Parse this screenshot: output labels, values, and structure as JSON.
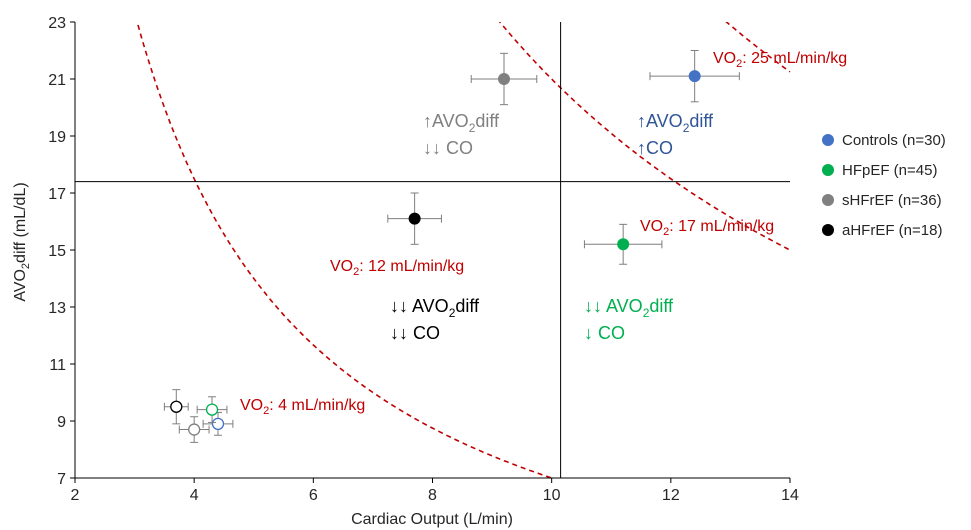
{
  "chart_data": {
    "type": "scatter",
    "xlabel": "Cardiac Output (L/min)",
    "ylabel_main": "AVO",
    "ylabel_sub": "2",
    "ylabel_tail": "diff (mL/dL)",
    "xlim": [
      2,
      14
    ],
    "ylim": [
      7,
      23
    ],
    "x_ticks": [
      2,
      4,
      6,
      8,
      10,
      12,
      14
    ],
    "y_ticks": [
      7,
      9,
      11,
      13,
      15,
      17,
      19,
      21,
      23
    ],
    "grid": false,
    "reference_lines": {
      "x": 10.15,
      "y": 17.4
    },
    "series": [
      {
        "name": "Controls (n=30)",
        "color": "#4472C4",
        "points": [
          {
            "x": 12.4,
            "y": 21.1,
            "xerr": 0.75,
            "yerr": 0.9,
            "filled": true
          },
          {
            "x": 4.4,
            "y": 8.9,
            "xerr": 0.25,
            "yerr": 0.4,
            "filled": false
          }
        ]
      },
      {
        "name": "HFpEF (n=45)",
        "color": "#00B050",
        "points": [
          {
            "x": 11.2,
            "y": 15.2,
            "xerr": 0.65,
            "yerr": 0.7,
            "filled": true
          },
          {
            "x": 4.3,
            "y": 9.4,
            "xerr": 0.25,
            "yerr": 0.45,
            "filled": false
          }
        ]
      },
      {
        "name": "sHFrEF (n=36)",
        "color": "#808080",
        "points": [
          {
            "x": 9.2,
            "y": 21.0,
            "xerr": 0.55,
            "yerr": 0.9,
            "filled": true
          },
          {
            "x": 4.0,
            "y": 8.7,
            "xerr": 0.25,
            "yerr": 0.45,
            "filled": false
          }
        ]
      },
      {
        "name": "aHFrEF (n=18)",
        "color": "#000000",
        "points": [
          {
            "x": 7.7,
            "y": 16.1,
            "xerr": 0.45,
            "yerr": 0.9,
            "filled": true
          },
          {
            "x": 3.7,
            "y": 9.5,
            "xerr": 0.2,
            "yerr": 0.6,
            "filled": false
          }
        ]
      }
    ],
    "iso_curves": [
      {
        "k": 4,
        "label_pre": "VO",
        "label_sub": "2",
        "label_post": ": 4 mL/min/kg"
      },
      {
        "k": 12,
        "label_pre": "VO",
        "label_sub": "2",
        "label_post": ": 12 mL/min/kg"
      },
      {
        "k": 17,
        "label_pre": "VO",
        "label_sub": "2",
        "label_post": ": 17 mL/min/kg"
      },
      {
        "k": 25,
        "label_pre": "VO",
        "label_sub": "2",
        "label_post": ": 25 mL/min/kg"
      }
    ],
    "iso_curve_color": "#C00000",
    "quadrant_annotations": [
      {
        "color": "#808080",
        "lines": [
          {
            "pre": "↑AVO",
            "sub": "2",
            "post": "diff"
          },
          {
            "pre": "↓↓ CO",
            "sub": "",
            "post": ""
          }
        ]
      },
      {
        "color": "#2F5597",
        "lines": [
          {
            "pre": "↑AVO",
            "sub": "2",
            "post": "diff"
          },
          {
            "pre": "↑CO",
            "sub": "",
            "post": ""
          }
        ]
      },
      {
        "color": "#000000",
        "lines": [
          {
            "pre": "↓↓ AVO",
            "sub": "2",
            "post": "diff"
          },
          {
            "pre": "↓↓ CO",
            "sub": "",
            "post": ""
          }
        ]
      },
      {
        "color": "#00B050",
        "lines": [
          {
            "pre": "↓↓ AVO",
            "sub": "2",
            "post": "diff"
          },
          {
            "pre": "↓ CO",
            "sub": "",
            "post": ""
          }
        ]
      }
    ],
    "legend_position": "right"
  }
}
